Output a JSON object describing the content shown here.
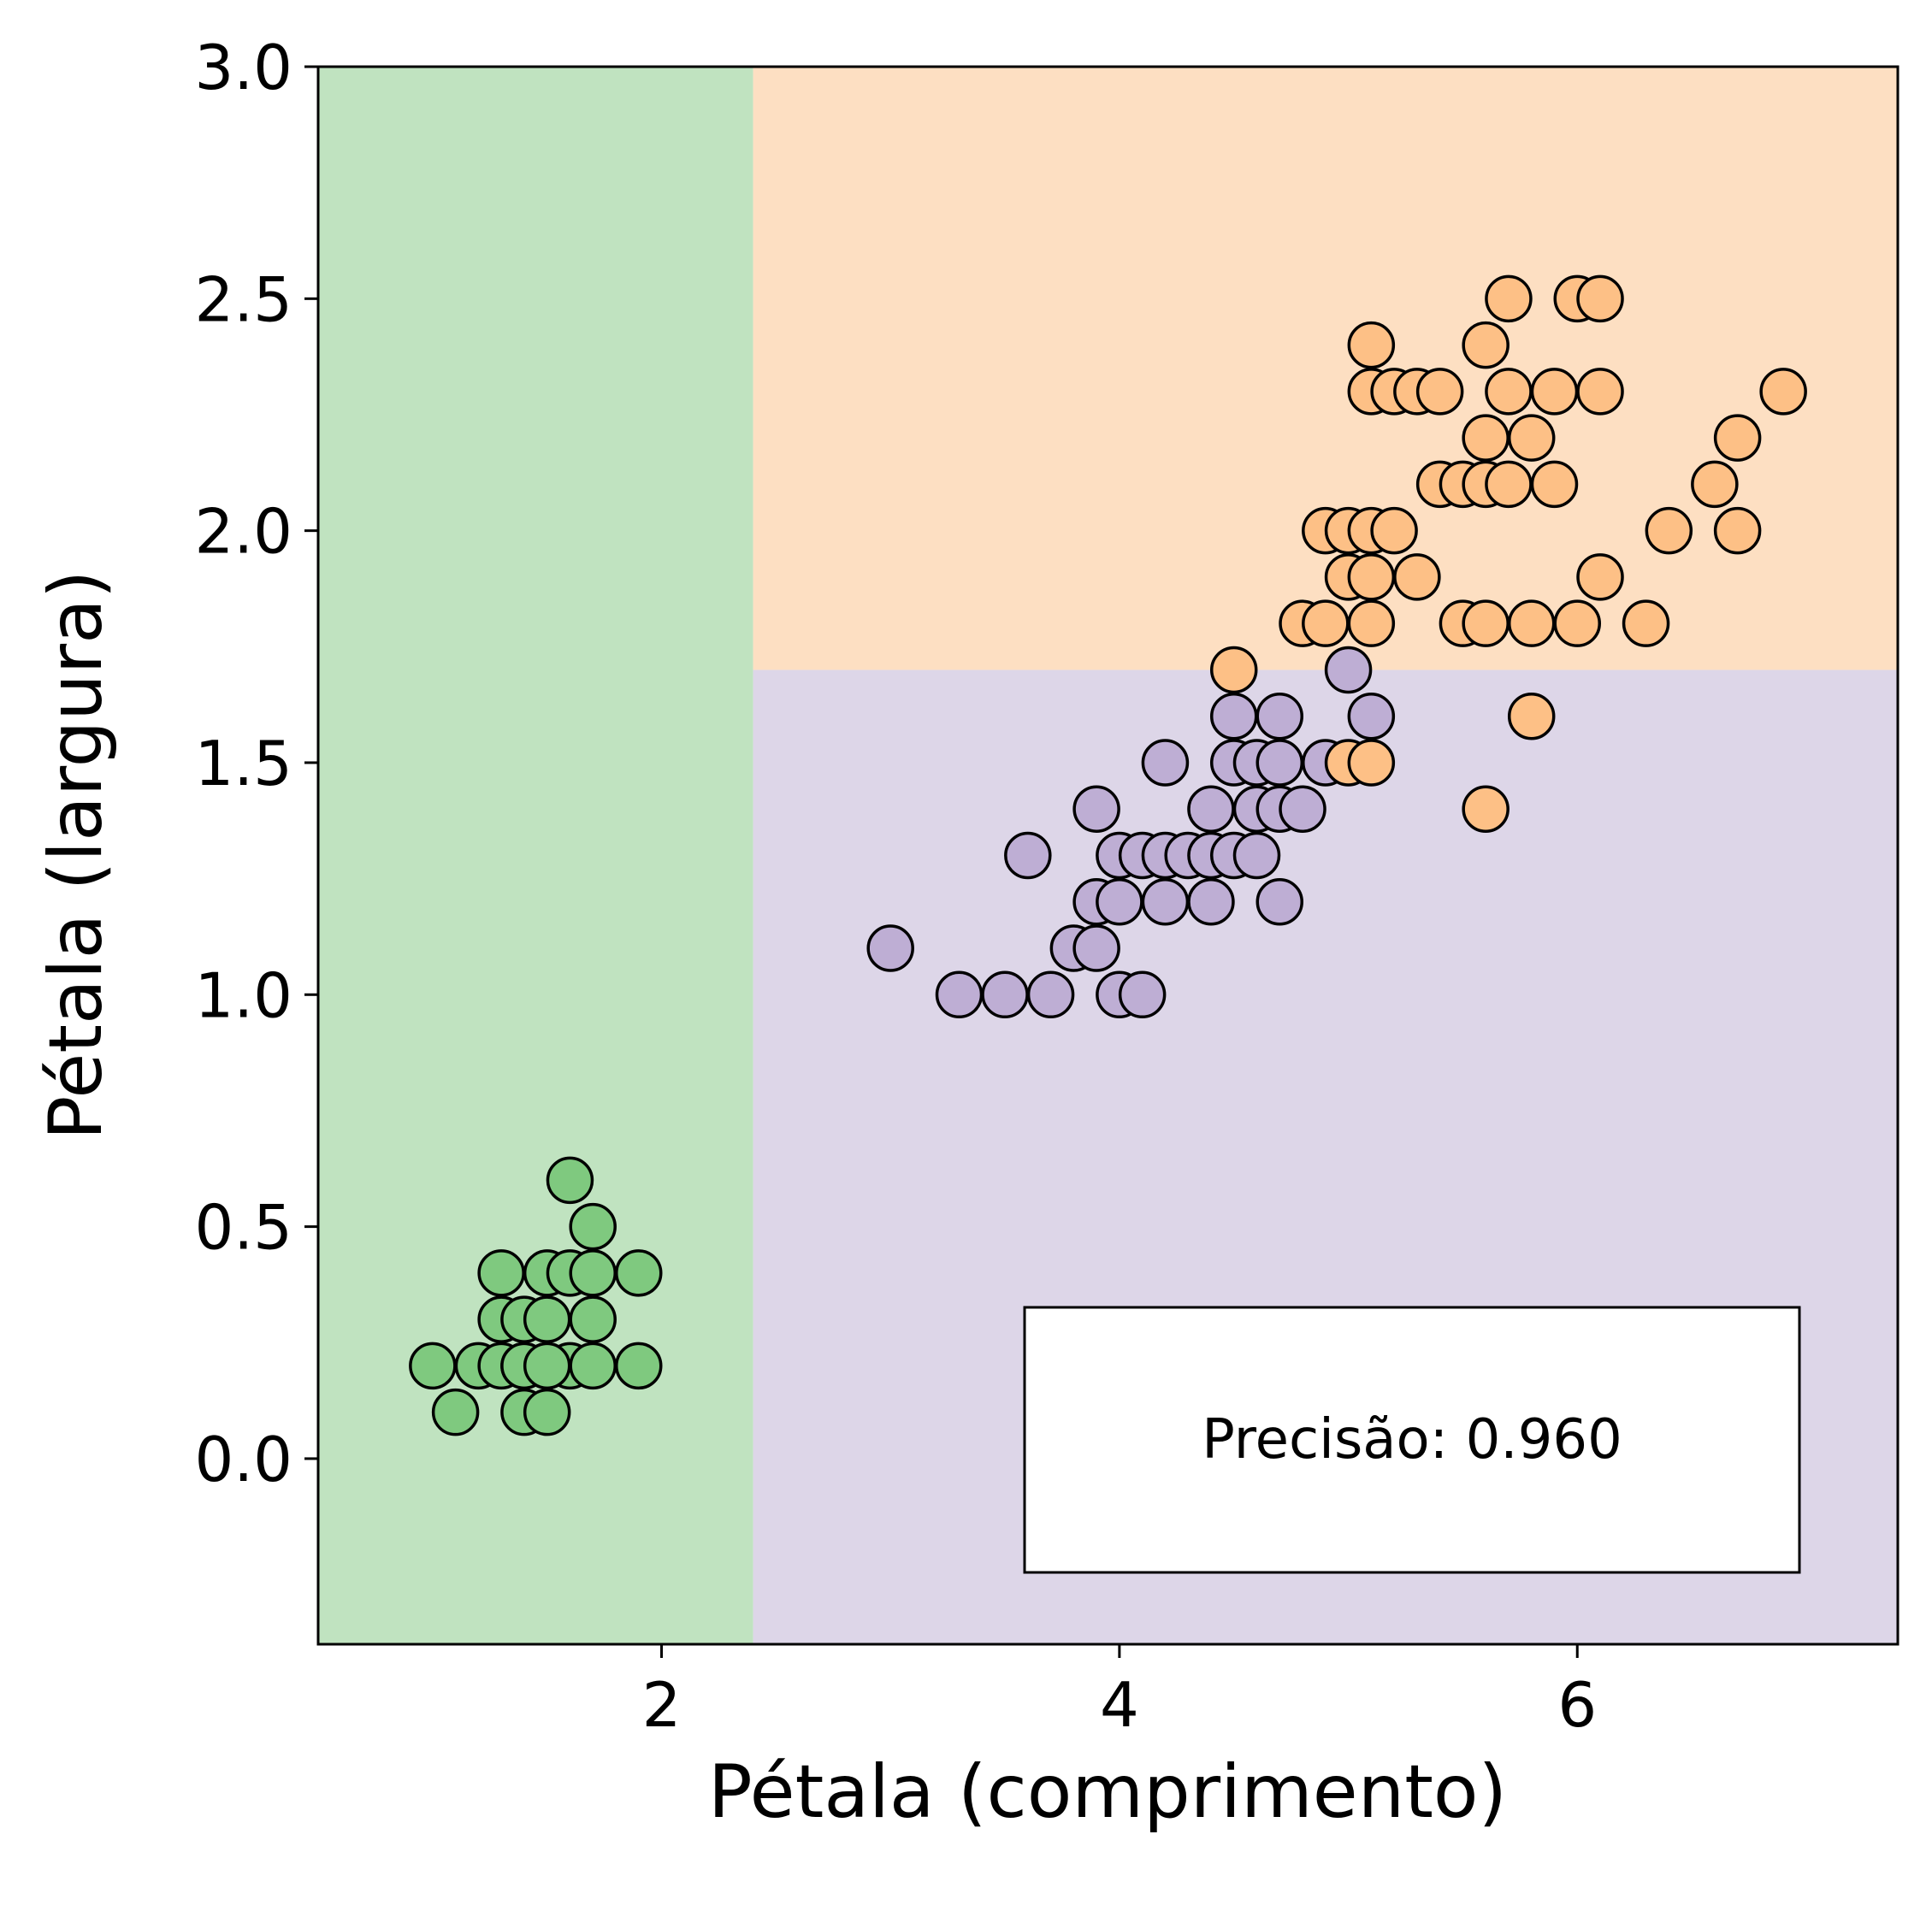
{
  "chart_data": {
    "type": "scatter",
    "title": "",
    "xlabel": "Pétala (comprimento)",
    "ylabel": "Pétala (largura)",
    "xlim": [
      0.5,
      7.4
    ],
    "ylim": [
      -0.4,
      3.0
    ],
    "xticks": [
      {
        "value": 2,
        "label": "2"
      },
      {
        "value": 4,
        "label": "4"
      },
      {
        "value": 6,
        "label": "6"
      }
    ],
    "yticks": [
      {
        "value": 0.0,
        "label": "0.0"
      },
      {
        "value": 0.5,
        "label": "0.5"
      },
      {
        "value": 1.0,
        "label": "1.0"
      },
      {
        "value": 1.5,
        "label": "1.5"
      },
      {
        "value": 2.0,
        "label": "2.0"
      },
      {
        "value": 2.5,
        "label": "2.5"
      },
      {
        "value": 3.0,
        "label": "3.0"
      }
    ],
    "grid": false,
    "legend": "none",
    "decision_regions": [
      {
        "class": 0,
        "color": "#c0e3c0",
        "x_range": [
          0.5,
          2.4
        ],
        "y_range": [
          -0.4,
          3.0
        ]
      },
      {
        "class": 1,
        "color": "#ddd6e8",
        "x_range": [
          2.4,
          7.4
        ],
        "y_range": [
          -0.4,
          1.7
        ]
      },
      {
        "class": 2,
        "color": "#fddfc2",
        "x_range": [
          2.4,
          7.4
        ],
        "y_range": [
          1.7,
          3.0
        ]
      }
    ],
    "series": [
      {
        "class": 0,
        "color": "#7fc97f",
        "points": [
          [
            1.0,
            0.2
          ],
          [
            1.1,
            0.1
          ],
          [
            1.2,
            0.2
          ],
          [
            1.3,
            0.2
          ],
          [
            1.3,
            0.3
          ],
          [
            1.3,
            0.4
          ],
          [
            1.4,
            0.1
          ],
          [
            1.4,
            0.2
          ],
          [
            1.4,
            0.3
          ],
          [
            1.5,
            0.1
          ],
          [
            1.5,
            0.2
          ],
          [
            1.5,
            0.3
          ],
          [
            1.5,
            0.4
          ],
          [
            1.6,
            0.2
          ],
          [
            1.6,
            0.4
          ],
          [
            1.6,
            0.6
          ],
          [
            1.7,
            0.2
          ],
          [
            1.7,
            0.3
          ],
          [
            1.7,
            0.4
          ],
          [
            1.7,
            0.5
          ],
          [
            1.9,
            0.2
          ],
          [
            1.9,
            0.4
          ],
          [
            1.4,
            0.2
          ],
          [
            1.5,
            0.2
          ]
        ]
      },
      {
        "class": 1,
        "color": "#beaed4",
        "points": [
          [
            3.0,
            1.1
          ],
          [
            3.3,
            1.0
          ],
          [
            3.5,
            1.0
          ],
          [
            3.6,
            1.3
          ],
          [
            3.7,
            1.0
          ],
          [
            3.8,
            1.1
          ],
          [
            3.9,
            1.1
          ],
          [
            3.9,
            1.2
          ],
          [
            3.9,
            1.4
          ],
          [
            4.0,
            1.0
          ],
          [
            4.0,
            1.2
          ],
          [
            4.0,
            1.3
          ],
          [
            4.1,
            1.0
          ],
          [
            4.1,
            1.3
          ],
          [
            4.2,
            1.2
          ],
          [
            4.2,
            1.3
          ],
          [
            4.2,
            1.5
          ],
          [
            4.3,
            1.3
          ],
          [
            4.4,
            1.2
          ],
          [
            4.4,
            1.3
          ],
          [
            4.4,
            1.4
          ],
          [
            4.5,
            1.3
          ],
          [
            4.5,
            1.5
          ],
          [
            4.5,
            1.6
          ],
          [
            4.6,
            1.3
          ],
          [
            4.6,
            1.4
          ],
          [
            4.6,
            1.5
          ],
          [
            4.7,
            1.2
          ],
          [
            4.7,
            1.4
          ],
          [
            4.7,
            1.5
          ],
          [
            4.7,
            1.6
          ],
          [
            4.8,
            1.4
          ],
          [
            4.9,
            1.5
          ],
          [
            5.0,
            1.7
          ],
          [
            5.1,
            1.6
          ]
        ]
      },
      {
        "class": 2,
        "color": "#fdc086",
        "points": [
          [
            4.5,
            1.7
          ],
          [
            4.8,
            1.8
          ],
          [
            4.9,
            1.8
          ],
          [
            4.9,
            2.0
          ],
          [
            5.0,
            1.5
          ],
          [
            5.0,
            1.9
          ],
          [
            5.0,
            2.0
          ],
          [
            5.1,
            1.5
          ],
          [
            5.1,
            1.8
          ],
          [
            5.1,
            1.9
          ],
          [
            5.1,
            2.0
          ],
          [
            5.1,
            2.3
          ],
          [
            5.1,
            2.4
          ],
          [
            5.2,
            2.0
          ],
          [
            5.2,
            2.3
          ],
          [
            5.3,
            1.9
          ],
          [
            5.3,
            2.3
          ],
          [
            5.4,
            2.1
          ],
          [
            5.4,
            2.3
          ],
          [
            5.5,
            1.8
          ],
          [
            5.5,
            2.1
          ],
          [
            5.6,
            1.4
          ],
          [
            5.6,
            1.8
          ],
          [
            5.6,
            2.1
          ],
          [
            5.6,
            2.2
          ],
          [
            5.6,
            2.4
          ],
          [
            5.7,
            2.1
          ],
          [
            5.7,
            2.3
          ],
          [
            5.7,
            2.5
          ],
          [
            5.8,
            1.6
          ],
          [
            5.8,
            1.8
          ],
          [
            5.8,
            2.2
          ],
          [
            5.9,
            2.1
          ],
          [
            5.9,
            2.3
          ],
          [
            6.0,
            1.8
          ],
          [
            6.0,
            2.5
          ],
          [
            6.1,
            1.9
          ],
          [
            6.1,
            2.3
          ],
          [
            6.1,
            2.5
          ],
          [
            6.3,
            1.8
          ],
          [
            6.4,
            2.0
          ],
          [
            6.6,
            2.1
          ],
          [
            6.7,
            2.0
          ],
          [
            6.7,
            2.2
          ],
          [
            6.9,
            2.3
          ]
        ]
      }
    ],
    "annotation": {
      "label": "Precisão: 0.960",
      "position": "bottom-right"
    }
  }
}
